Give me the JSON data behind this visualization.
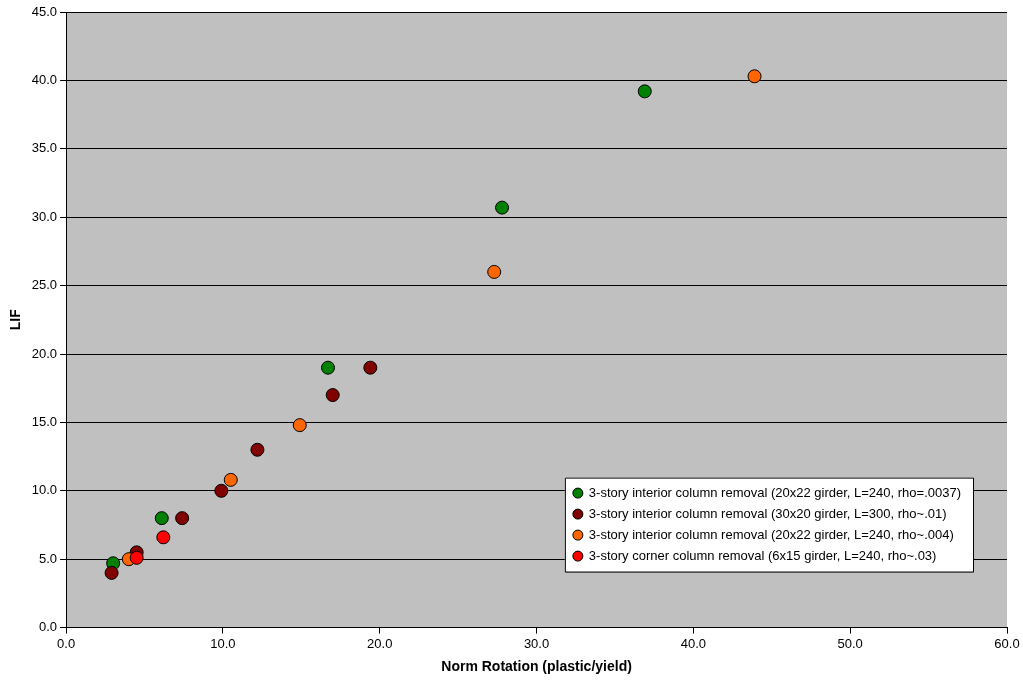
{
  "chart_data": {
    "type": "scatter",
    "xlabel": "Norm Rotation (plastic/yield)",
    "ylabel": "LIF",
    "xlim": [
      0,
      60
    ],
    "xticks": [
      {
        "value": 0,
        "label": "0.0"
      },
      {
        "value": 10,
        "label": "10.0"
      },
      {
        "value": 20,
        "label": "20.0"
      },
      {
        "value": 30,
        "label": "30.0"
      },
      {
        "value": 40,
        "label": "40.0"
      },
      {
        "value": 50,
        "label": "50.0"
      },
      {
        "value": 60,
        "label": "60.0"
      }
    ],
    "ylim": [
      0,
      45
    ],
    "yticks": [
      {
        "value": 0,
        "label": "0.0"
      },
      {
        "value": 5,
        "label": "5.0"
      },
      {
        "value": 10,
        "label": "10.0"
      },
      {
        "value": 15,
        "label": "15.0"
      },
      {
        "value": 20,
        "label": "20.0"
      },
      {
        "value": 25,
        "label": "25.0"
      },
      {
        "value": 30,
        "label": "30.0"
      },
      {
        "value": 35,
        "label": "35.0"
      },
      {
        "value": 40,
        "label": "40.0"
      },
      {
        "value": 45,
        "label": "45.0"
      }
    ],
    "grid": "y",
    "legend": "bottom right",
    "marker": "circle",
    "series": [
      {
        "name": "3-story interior column removal (20x22 girder, L=240, rho=.0037)",
        "color": "#008000",
        "x": [
          3.0,
          6.1,
          16.7,
          27.8,
          36.9
        ],
        "values": [
          4.7,
          8.0,
          19.0,
          30.7,
          39.2
        ]
      },
      {
        "name": "3-story interior column removal (30x20 girder, L=300, rho~.01)",
        "color": "#800000",
        "x": [
          2.9,
          4.5,
          7.4,
          9.9,
          12.2,
          17.0,
          19.4
        ],
        "values": [
          4.0,
          5.5,
          8.0,
          10.0,
          13.0,
          17.0,
          19.0
        ]
      },
      {
        "name": "3-story interior column removal (20x22 girder, L=240, rho~.004)",
        "color": "#ff6600",
        "x": [
          4.0,
          10.5,
          14.9,
          27.3,
          43.9
        ],
        "values": [
          5.0,
          10.8,
          14.8,
          26.0,
          40.3
        ]
      },
      {
        "name": "3-story corner column removal (6x15 girder, L=240, rho~.03)",
        "color": "#ff0000",
        "x": [
          4.5,
          6.2
        ],
        "values": [
          5.1,
          6.6
        ]
      }
    ]
  }
}
